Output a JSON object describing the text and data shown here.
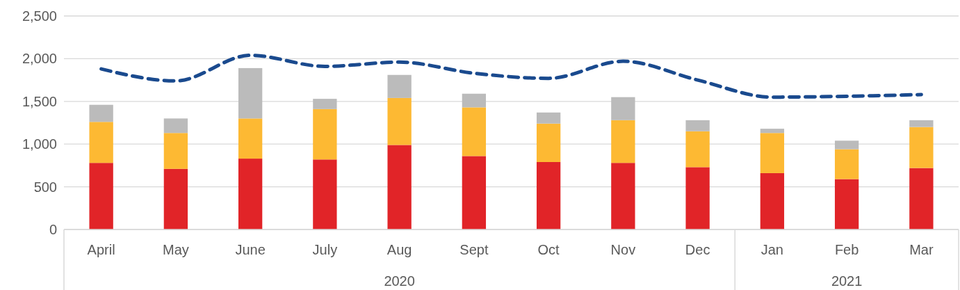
{
  "chart_data": {
    "type": "bar",
    "stacked": true,
    "categories": [
      "April",
      "May",
      "June",
      "July",
      "Aug",
      "Sept",
      "Oct",
      "Nov",
      "Dec",
      "Jan",
      "Feb",
      "Mar"
    ],
    "series": [
      {
        "color": "#e12428",
        "values": [
          780,
          710,
          830,
          820,
          990,
          860,
          790,
          780,
          730,
          660,
          590,
          720
        ]
      },
      {
        "color": "#fdb933",
        "values": [
          480,
          420,
          470,
          590,
          550,
          570,
          450,
          500,
          420,
          470,
          350,
          480
        ]
      },
      {
        "color": "#bbbbbb",
        "values": [
          200,
          170,
          590,
          120,
          270,
          160,
          130,
          270,
          130,
          50,
          100,
          80
        ]
      },
      {
        "type": "line",
        "color": "#1a4a8e",
        "line_style": "dashed",
        "marker": "none",
        "values": [
          1880,
          1740,
          2040,
          1910,
          1960,
          1830,
          1770,
          1970,
          1750,
          1550,
          1560,
          1580
        ]
      }
    ],
    "ylim": [
      0,
      2500
    ],
    "yticks": [
      0,
      {
        "value": 500,
        "label": "500"
      },
      {
        "value": 1000,
        "label": "1,000"
      },
      {
        "value": 1500,
        "label": "1,500"
      },
      {
        "value": 2000,
        "label": "2,000"
      },
      {
        "value": 2500,
        "label": "2,500"
      }
    ],
    "grid": "y",
    "annotations": [
      "2020",
      "2021"
    ]
  }
}
